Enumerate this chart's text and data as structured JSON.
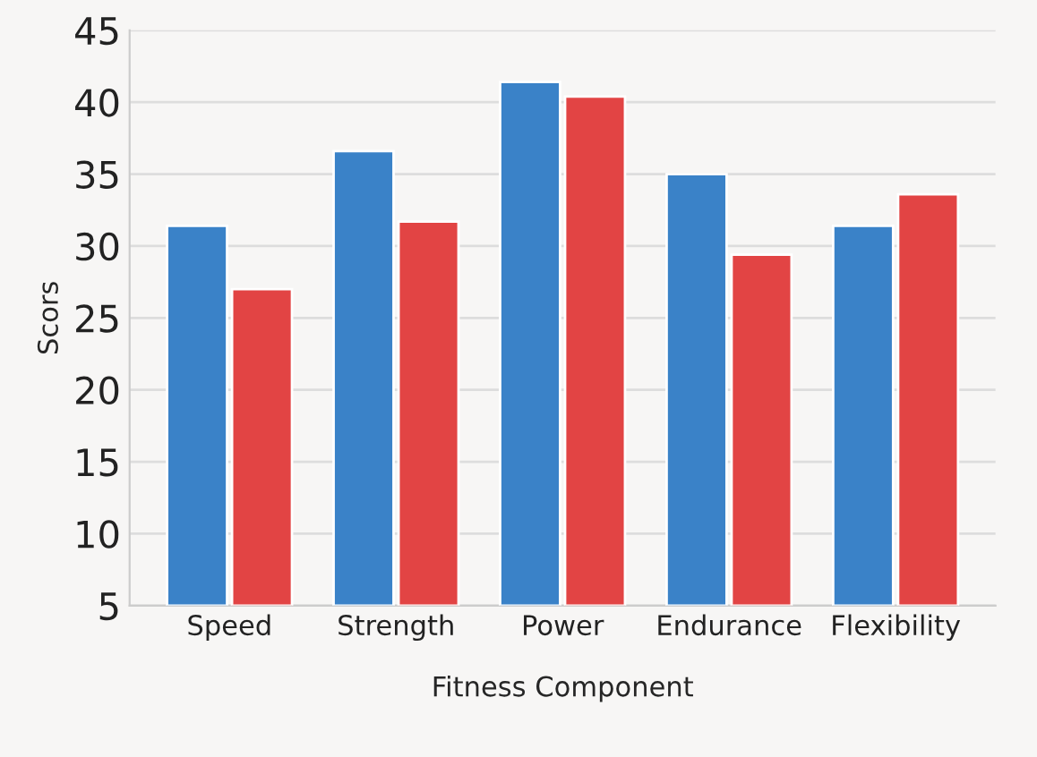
{
  "chart_data": {
    "type": "bar",
    "xlabel": "Fitness Component",
    "ylabel": "Scors",
    "categories": [
      "Speed",
      "Strength",
      "Power",
      "Endurance",
      "Flexibility"
    ],
    "series": [
      {
        "color": "#3a82c8",
        "values": [
          31.4,
          36.6,
          41.4,
          35.0,
          31.4
        ]
      },
      {
        "color": "#e24444",
        "values": [
          27.0,
          31.7,
          40.4,
          29.4,
          33.6
        ]
      }
    ],
    "ylim": [
      5,
      45
    ],
    "yticks": [
      5,
      10,
      15,
      20,
      25,
      30,
      35,
      40,
      45
    ],
    "grid": "y",
    "legend": false
  }
}
